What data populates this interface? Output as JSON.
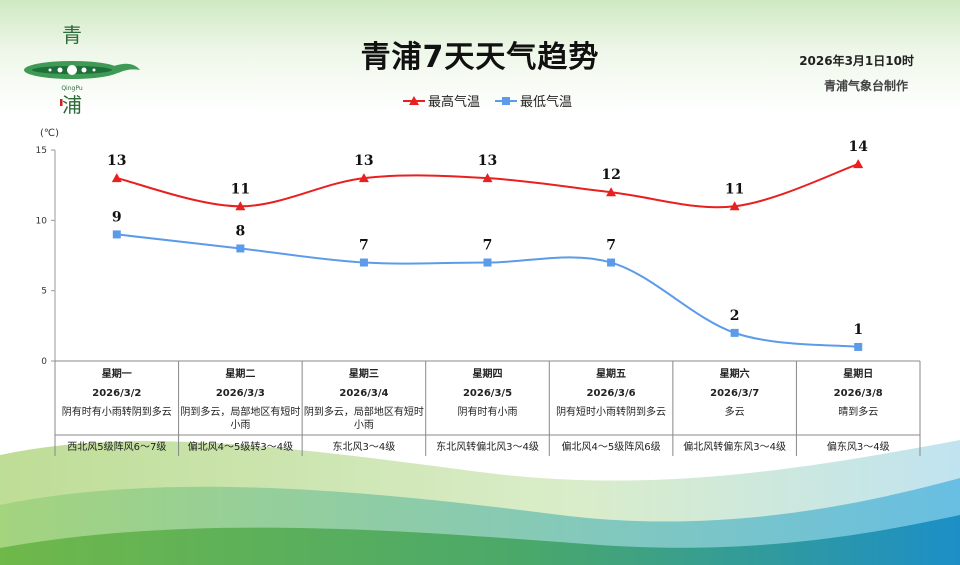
{
  "header": {
    "title": "青浦7天天气趋势",
    "issue_time": "2026年3月1日10时",
    "issuer": "青浦气象台制作",
    "logo_text": "青浦 QingPu"
  },
  "chart_data": {
    "type": "line",
    "categories": [
      "星期一",
      "星期二",
      "星期三",
      "星期四",
      "星期五",
      "星期六",
      "星期日"
    ],
    "dates": [
      "2026/3/2",
      "2026/3/3",
      "2026/3/4",
      "2026/3/5",
      "2026/3/6",
      "2026/3/7",
      "2026/3/8"
    ],
    "weather": [
      "阴有时有小雨转阴到多云",
      "阴到多云，局部地区有短时小雨",
      "阴到多云，局部地区有短时小雨",
      "阴有时有小雨",
      "阴有短时小雨转阴到多云",
      "多云",
      "晴到多云"
    ],
    "wind": [
      "西北风5级阵风6～7级",
      "偏北风4～5级转3～4级",
      "东北风3～4级",
      "东北风转偏北风3～4级",
      "偏北风4～5级阵风6级",
      "偏北风转偏东风3～4级",
      "偏东风3～4级"
    ],
    "series": [
      {
        "name": "最高气温",
        "values": [
          13,
          11,
          13,
          13,
          12,
          11,
          14
        ],
        "color": "#e8201f"
      },
      {
        "name": "最低气温",
        "values": [
          9,
          8,
          7,
          7,
          7,
          2,
          1
        ],
        "color": "#5b9bea"
      }
    ],
    "yunit": "(℃)",
    "ylim": [
      0,
      15
    ],
    "yticks": [
      0,
      5,
      10,
      15
    ],
    "legend": "top-center",
    "grid": false
  }
}
